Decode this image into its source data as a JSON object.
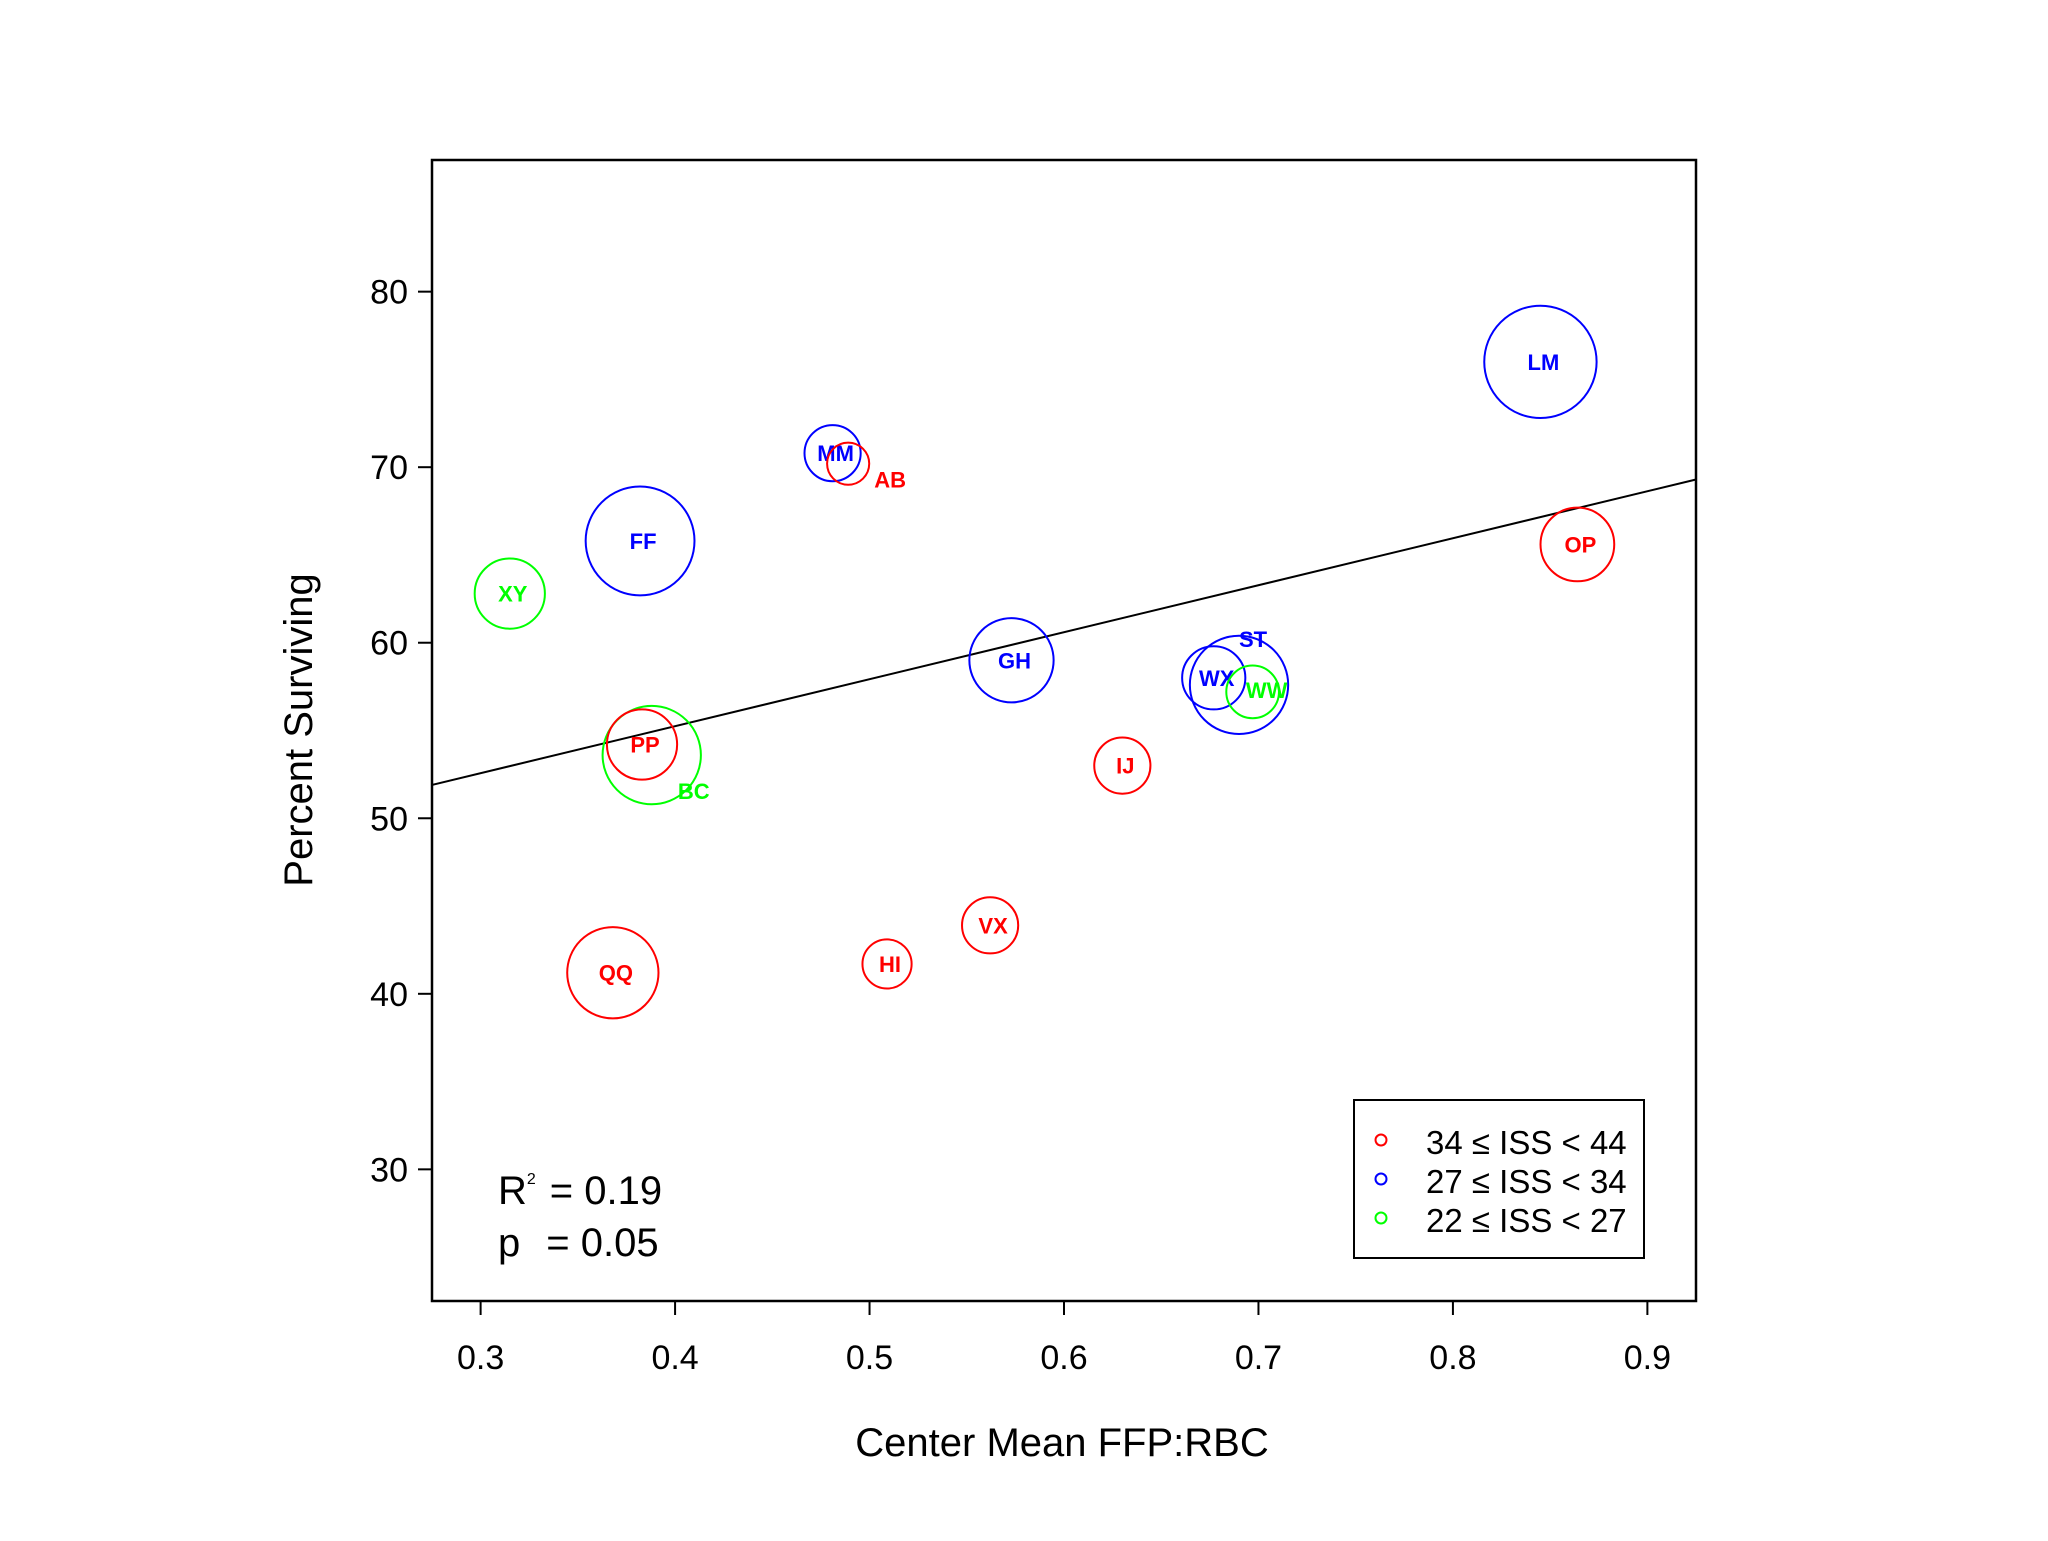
{
  "chart_data": {
    "type": "scatter",
    "xlabel": "Center Mean FFP:RBC",
    "ylabel": "Percent Surviving",
    "xlim": [
      0.275,
      0.925
    ],
    "ylim": [
      22.5,
      87.5
    ],
    "xticks": [
      "0.3",
      "0.4",
      "0.5",
      "0.6",
      "0.7",
      "0.8",
      "0.9"
    ],
    "yticks": [
      "30",
      "40",
      "50",
      "60",
      "70",
      "80"
    ],
    "groups": [
      {
        "key": "red",
        "color": "#ff0000",
        "legend": "34 ≤ ISS < 44"
      },
      {
        "key": "blue",
        "color": "#0000ff",
        "legend": "27 ≤ ISS < 34"
      },
      {
        "key": "green",
        "color": "#00ff00",
        "legend": "22 ≤ ISS < 27"
      }
    ],
    "points": [
      {
        "label": "LM",
        "x": 0.845,
        "y": 76.0,
        "r": 3.2,
        "group": "blue"
      },
      {
        "label": "MM",
        "x": 0.481,
        "y": 70.8,
        "r": 1.6,
        "group": "blue"
      },
      {
        "label": "AB",
        "x": 0.489,
        "y": 70.2,
        "r": 1.2,
        "group": "red"
      },
      {
        "label": "FF",
        "x": 0.382,
        "y": 65.8,
        "r": 3.1,
        "group": "blue"
      },
      {
        "label": "OP",
        "x": 0.864,
        "y": 65.6,
        "r": 2.1,
        "group": "red"
      },
      {
        "label": "XY",
        "x": 0.315,
        "y": 62.8,
        "r": 2.0,
        "group": "green"
      },
      {
        "label": "GH",
        "x": 0.573,
        "y": 59.0,
        "r": 2.4,
        "group": "blue"
      },
      {
        "label": "ST",
        "x": 0.69,
        "y": 57.6,
        "r": 2.8,
        "group": "blue"
      },
      {
        "label": "WX",
        "x": 0.677,
        "y": 58.0,
        "r": 1.8,
        "group": "blue"
      },
      {
        "label": "WW",
        "x": 0.697,
        "y": 57.2,
        "r": 1.5,
        "group": "green"
      },
      {
        "label": "BC",
        "x": 0.388,
        "y": 53.6,
        "r": 2.8,
        "group": "green"
      },
      {
        "label": "PP",
        "x": 0.383,
        "y": 54.2,
        "r": 2.0,
        "group": "red"
      },
      {
        "label": "IJ",
        "x": 0.63,
        "y": 53.0,
        "r": 1.6,
        "group": "red"
      },
      {
        "label": "VX",
        "x": 0.562,
        "y": 43.9,
        "r": 1.6,
        "group": "red"
      },
      {
        "label": "HI",
        "x": 0.509,
        "y": 41.7,
        "r": 1.4,
        "group": "red"
      },
      {
        "label": "QQ",
        "x": 0.368,
        "y": 41.2,
        "r": 2.6,
        "group": "red"
      }
    ],
    "trendline": {
      "x": [
        0.275,
        0.925
      ],
      "y": [
        51.9,
        69.3
      ]
    },
    "legend_position": "bottom-right",
    "stats": {
      "r2_prefix": "R",
      "r2_sup": "2",
      "r2_value": "= 0.19",
      "p_label": "p",
      "p_value": "= 0.05"
    },
    "grid": false
  }
}
